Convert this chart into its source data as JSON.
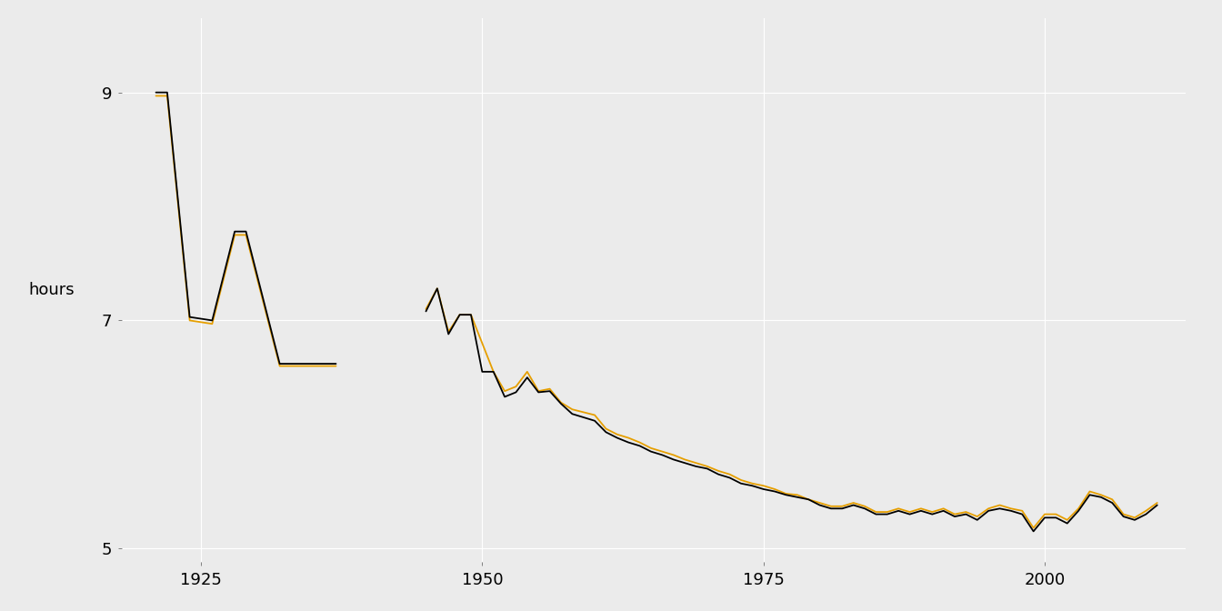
{
  "up_years": [
    1921,
    1922,
    1924,
    1926,
    1928,
    1929,
    1932,
    1934,
    1937,
    1945,
    1946,
    1947,
    1948,
    1949,
    1950,
    1951,
    1952,
    1953,
    1954,
    1955,
    1956,
    1957,
    1958,
    1960,
    1961,
    1962,
    1963,
    1964,
    1965,
    1966,
    1967,
    1968,
    1969,
    1970,
    1971,
    1972,
    1973,
    1974,
    1975,
    1976,
    1977,
    1978,
    1979,
    1980,
    1981,
    1982,
    1983,
    1984,
    1985,
    1986,
    1987,
    1988,
    1989,
    1990,
    1991,
    1992,
    1993,
    1994,
    1995,
    1996,
    1997,
    1998,
    1999,
    2000,
    2001,
    2002,
    2003,
    2004,
    2005,
    2006,
    2007,
    2008,
    2009,
    2010
  ],
  "up_hours": [
    8.97,
    8.97,
    7.0,
    6.97,
    7.75,
    7.75,
    6.6,
    6.6,
    6.6,
    7.1,
    7.28,
    6.9,
    7.05,
    7.05,
    6.8,
    6.55,
    6.38,
    6.42,
    6.55,
    6.38,
    6.4,
    6.28,
    6.22,
    6.17,
    6.05,
    6.0,
    5.97,
    5.93,
    5.88,
    5.85,
    5.82,
    5.78,
    5.75,
    5.72,
    5.68,
    5.65,
    5.6,
    5.57,
    5.55,
    5.52,
    5.48,
    5.47,
    5.43,
    5.4,
    5.37,
    5.37,
    5.4,
    5.37,
    5.32,
    5.32,
    5.35,
    5.32,
    5.35,
    5.32,
    5.35,
    5.3,
    5.32,
    5.28,
    5.35,
    5.38,
    5.35,
    5.33,
    5.18,
    5.3,
    5.3,
    5.25,
    5.35,
    5.5,
    5.47,
    5.43,
    5.3,
    5.27,
    5.33,
    5.4
  ],
  "down_years": [
    1921,
    1922,
    1924,
    1926,
    1928,
    1929,
    1932,
    1934,
    1937,
    1945,
    1946,
    1947,
    1948,
    1949,
    1950,
    1951,
    1952,
    1953,
    1954,
    1955,
    1956,
    1957,
    1958,
    1960,
    1961,
    1962,
    1963,
    1964,
    1965,
    1966,
    1967,
    1968,
    1969,
    1970,
    1971,
    1972,
    1973,
    1974,
    1975,
    1976,
    1977,
    1978,
    1979,
    1980,
    1981,
    1982,
    1983,
    1984,
    1985,
    1986,
    1987,
    1988,
    1989,
    1990,
    1991,
    1992,
    1993,
    1994,
    1995,
    1996,
    1997,
    1998,
    1999,
    2000,
    2001,
    2002,
    2003,
    2004,
    2005,
    2006,
    2007,
    2008,
    2009,
    2010
  ],
  "down_hours": [
    9.0,
    9.0,
    7.03,
    7.0,
    7.78,
    7.78,
    6.62,
    6.62,
    6.62,
    7.08,
    7.28,
    6.88,
    7.05,
    7.05,
    6.55,
    6.55,
    6.33,
    6.37,
    6.5,
    6.37,
    6.38,
    6.27,
    6.18,
    6.12,
    6.02,
    5.97,
    5.93,
    5.9,
    5.85,
    5.82,
    5.78,
    5.75,
    5.72,
    5.7,
    5.65,
    5.62,
    5.57,
    5.55,
    5.52,
    5.5,
    5.47,
    5.45,
    5.43,
    5.38,
    5.35,
    5.35,
    5.38,
    5.35,
    5.3,
    5.3,
    5.33,
    5.3,
    5.33,
    5.3,
    5.33,
    5.28,
    5.3,
    5.25,
    5.33,
    5.35,
    5.33,
    5.3,
    5.15,
    5.27,
    5.27,
    5.22,
    5.33,
    5.47,
    5.45,
    5.4,
    5.28,
    5.25,
    5.3,
    5.38
  ],
  "up_color": "#E69F00",
  "down_color": "#000000",
  "background_color": "#EBEBEB",
  "grid_color": "#FFFFFF",
  "ylabel": "hours",
  "ylim": [
    4.88,
    9.65
  ],
  "yticks": [
    5,
    7,
    9
  ],
  "xticks": [
    1925,
    1950,
    1975,
    2000
  ],
  "xlim": [
    1918.0,
    2012.5
  ],
  "linewidth": 1.3
}
